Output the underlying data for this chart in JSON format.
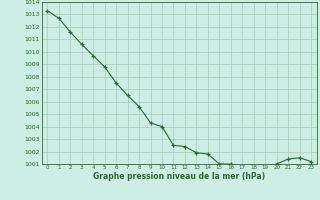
{
  "x": [
    0,
    1,
    2,
    3,
    4,
    5,
    6,
    7,
    8,
    9,
    10,
    11,
    12,
    13,
    14,
    15,
    16,
    17,
    18,
    19,
    20,
    21,
    22,
    23
  ],
  "y": [
    1013.3,
    1012.7,
    1011.6,
    1010.6,
    1009.7,
    1008.8,
    1007.5,
    1006.5,
    1005.6,
    1004.3,
    1004.0,
    1002.5,
    1002.4,
    1001.9,
    1001.8,
    1001.0,
    1001.0,
    1000.8,
    1000.8,
    1000.7,
    1001.0,
    1001.4,
    1001.5,
    1001.2
  ],
  "ylim": [
    1001,
    1014
  ],
  "yticks": [
    1001,
    1002,
    1003,
    1004,
    1005,
    1006,
    1007,
    1008,
    1009,
    1010,
    1011,
    1012,
    1013,
    1014
  ],
  "xticks": [
    0,
    1,
    2,
    3,
    4,
    5,
    6,
    7,
    8,
    9,
    10,
    11,
    12,
    13,
    14,
    15,
    16,
    17,
    18,
    19,
    20,
    21,
    22,
    23
  ],
  "line_color": "#2d6a2d",
  "marker": "+",
  "marker_color": "#2d6a2d",
  "bg_color": "#cceee4",
  "grid_color": "#aaccbb",
  "xlabel": "Graphe pression niveau de la mer (hPa)",
  "xlabel_color": "#2d6a2d",
  "tick_color": "#2d6a2d",
  "figsize": [
    3.2,
    2.0
  ],
  "dpi": 100
}
